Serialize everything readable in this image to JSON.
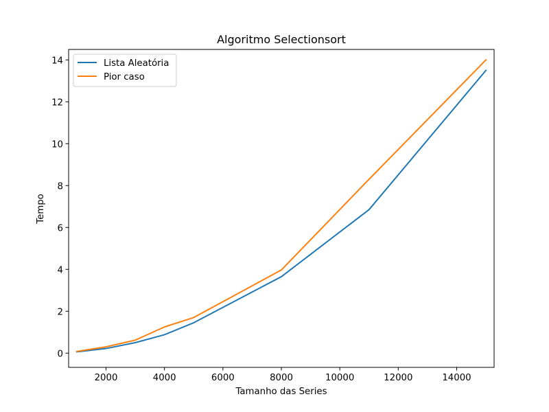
{
  "chart_data": {
    "type": "line",
    "title": "Algoritmo Selectionsort",
    "xlabel": "Tamanho das Series",
    "ylabel": "Tempo",
    "xlim": [
      720,
      15280
    ],
    "ylim": [
      -0.68,
      14.5
    ],
    "xticks": [
      2000,
      4000,
      6000,
      8000,
      10000,
      12000,
      14000
    ],
    "yticks": [
      0,
      2,
      4,
      6,
      8,
      10,
      12,
      14
    ],
    "grid": false,
    "legend_position": "top-left",
    "x": [
      1000,
      2000,
      3000,
      4000,
      5000,
      8000,
      11000,
      15000
    ],
    "series": [
      {
        "name": "Lista Aleatória",
        "color": "#1f77b4",
        "values": [
          0.06,
          0.22,
          0.5,
          0.88,
          1.45,
          3.65,
          6.85,
          13.5
        ]
      },
      {
        "name": "Pior caso",
        "color": "#ff7f0e",
        "values": [
          0.08,
          0.3,
          0.62,
          1.25,
          1.7,
          3.97,
          8.3,
          14.0
        ]
      }
    ]
  }
}
